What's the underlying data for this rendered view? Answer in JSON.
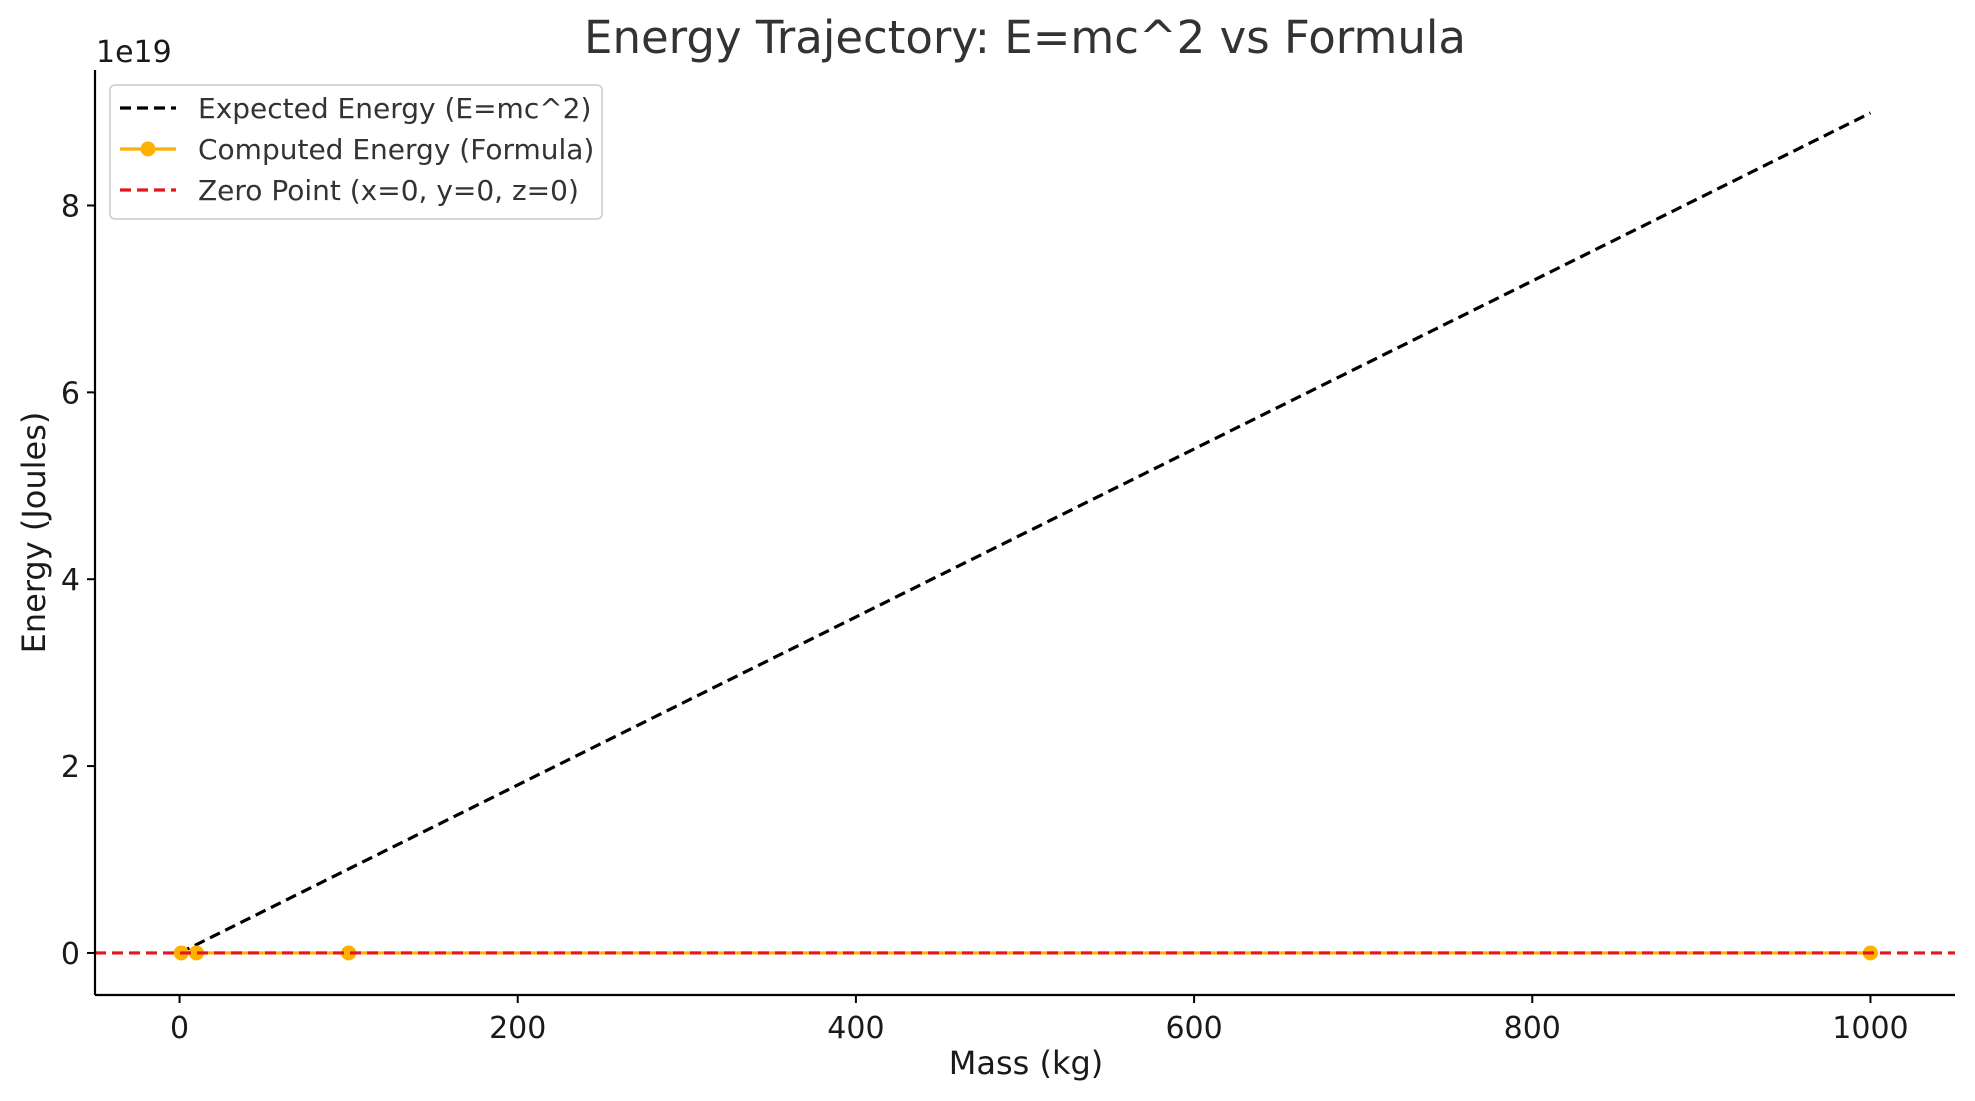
{
  "chart_data": {
    "type": "line",
    "title": "Energy Trajectory: E=mc^2 vs Formula",
    "xlabel": "Mass (kg)",
    "ylabel": "Energy (Joules)",
    "y_offset_label": "1e19",
    "xlim": [
      -50,
      1050
    ],
    "ylim": [
      -0.45,
      9.45
    ],
    "y_units_multiplier": 1e+19,
    "x_ticks": [
      0,
      200,
      400,
      600,
      800,
      1000
    ],
    "x_tick_labels": [
      "0",
      "200",
      "400",
      "600",
      "800",
      "1000"
    ],
    "y_ticks": [
      0,
      2,
      4,
      6,
      8
    ],
    "y_tick_labels": [
      "0",
      "2",
      "4",
      "6",
      "8"
    ],
    "grid": false,
    "legend_position": "upper left",
    "series": [
      {
        "name": "Expected Energy (E=mc^2)",
        "style": "dashed",
        "color": "#000000",
        "x": [
          0,
          1000
        ],
        "y": [
          0,
          8.99
        ]
      },
      {
        "name": "Computed Energy (Formula)",
        "style": "solid-with-markers",
        "color": "#ffb000",
        "x": [
          1,
          10,
          100,
          1000
        ],
        "y": [
          0,
          0,
          0,
          0
        ]
      },
      {
        "name": "Zero Point (x=0, y=0, z=0)",
        "style": "dashed",
        "color": "#e8141c",
        "type": "horizontal-line",
        "y": 0
      }
    ]
  }
}
